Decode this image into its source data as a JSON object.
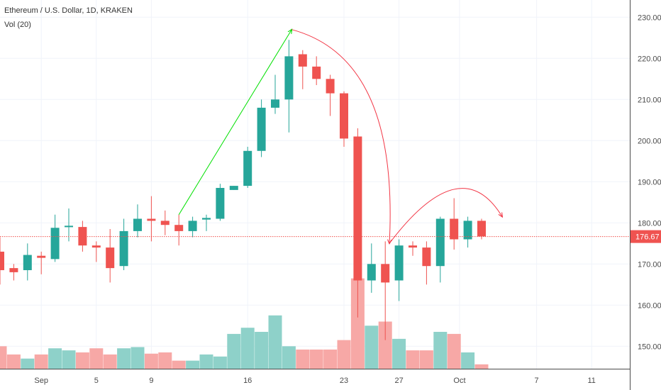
{
  "legend": {
    "title": "Ethereum / U.S. Dollar, 1D, KRAKEN",
    "volume": "Vol (20)"
  },
  "colors": {
    "up": "#26a69a",
    "down": "#ef5350",
    "up_volume": "#8ed1c9",
    "down_volume": "#f7a8a6",
    "last_price": "#ef5350",
    "grid": "#f0f3fa",
    "up_trend_arrow": "#00e000",
    "down_trend_arrow": "#f23645"
  },
  "chart_data": {
    "type": "candlestick",
    "title": "Ethereum / U.S. Dollar, 1D, KRAKEN",
    "ylim": [
      144,
      232
    ],
    "y_ticks": [
      150,
      160,
      170,
      180,
      190,
      200,
      210,
      220,
      230
    ],
    "x_ticks": [
      "Sep",
      "5",
      "9",
      "16",
      "23",
      "27",
      "Oct",
      "7",
      "11"
    ],
    "last_price": 176.67,
    "last_price_label": "176.67",
    "grid": true,
    "candles": [
      {
        "open": 173.0,
        "high": 176.5,
        "low": 165.0,
        "close": 168.5
      },
      {
        "open": 169.0,
        "high": 170.0,
        "low": 166.0,
        "close": 168.0
      },
      {
        "open": 168.5,
        "high": 175.0,
        "low": 166.0,
        "close": 172.2
      },
      {
        "open": 172.0,
        "high": 173.0,
        "low": 167.5,
        "close": 171.5
      },
      {
        "open": 171.2,
        "high": 182.0,
        "low": 170.5,
        "close": 178.8
      },
      {
        "open": 179.0,
        "high": 183.5,
        "low": 175.5,
        "close": 179.3
      },
      {
        "open": 179.0,
        "high": 180.5,
        "low": 173.0,
        "close": 174.5
      },
      {
        "open": 174.5,
        "high": 175.5,
        "low": 170.5,
        "close": 174.0
      },
      {
        "open": 174.0,
        "high": 178.5,
        "low": 165.5,
        "close": 169.0
      },
      {
        "open": 169.5,
        "high": 181.0,
        "low": 168.5,
        "close": 178.0
      },
      {
        "open": 178.0,
        "high": 184.5,
        "low": 176.5,
        "close": 181.0
      },
      {
        "open": 181.0,
        "high": 186.5,
        "low": 175.5,
        "close": 180.5
      },
      {
        "open": 180.5,
        "high": 183.0,
        "low": 177.0,
        "close": 179.5
      },
      {
        "open": 179.5,
        "high": 182.0,
        "low": 174.5,
        "close": 178.0
      },
      {
        "open": 178.0,
        "high": 181.5,
        "low": 176.5,
        "close": 180.5
      },
      {
        "open": 180.8,
        "high": 182.0,
        "low": 178.0,
        "close": 181.2
      },
      {
        "open": 181.0,
        "high": 189.5,
        "low": 180.5,
        "close": 188.5
      },
      {
        "open": 188.0,
        "high": 189.0,
        "low": 188.0,
        "close": 189.0
      },
      {
        "open": 189.0,
        "high": 198.5,
        "low": 188.5,
        "close": 197.5
      },
      {
        "open": 197.5,
        "high": 210.0,
        "low": 196.0,
        "close": 208.0
      },
      {
        "open": 208.0,
        "high": 216.0,
        "low": 206.5,
        "close": 210.0
      },
      {
        "open": 210.0,
        "high": 224.5,
        "low": 202.0,
        "close": 220.5
      },
      {
        "open": 221.0,
        "high": 222.0,
        "low": 212.5,
        "close": 218.0
      },
      {
        "open": 218.0,
        "high": 220.5,
        "low": 213.5,
        "close": 215.0
      },
      {
        "open": 215.0,
        "high": 216.0,
        "low": 206.0,
        "close": 211.5
      },
      {
        "open": 211.5,
        "high": 212.0,
        "low": 198.5,
        "close": 200.5
      },
      {
        "open": 201.0,
        "high": 203.0,
        "low": 157.0,
        "close": 166.0
      },
      {
        "open": 166.0,
        "high": 175.0,
        "low": 163.0,
        "close": 170.0
      },
      {
        "open": 170.0,
        "high": 175.5,
        "low": 151.5,
        "close": 165.5
      },
      {
        "open": 166.0,
        "high": 176.0,
        "low": 161.0,
        "close": 174.5
      },
      {
        "open": 174.5,
        "high": 175.5,
        "low": 172.0,
        "close": 174.0
      },
      {
        "open": 174.0,
        "high": 175.5,
        "low": 165.0,
        "close": 169.5
      },
      {
        "open": 169.5,
        "high": 181.5,
        "low": 165.5,
        "close": 181.0
      },
      {
        "open": 181.0,
        "high": 186.0,
        "low": 173.5,
        "close": 176.0
      },
      {
        "open": 176.0,
        "high": 181.5,
        "low": 174.0,
        "close": 180.5
      },
      {
        "open": 180.5,
        "high": 181.0,
        "low": 176.0,
        "close": 176.7
      }
    ],
    "volumes": [
      150,
      148,
      147,
      148,
      149.5,
      149,
      148.5,
      149.5,
      148,
      149.5,
      149.8,
      148.2,
      148.5,
      146.5,
      146.5,
      148,
      147.5,
      153,
      154.5,
      153.5,
      157.5,
      150,
      149.2,
      149.2,
      149.2,
      151.5,
      166.5,
      155,
      156,
      151.8,
      149,
      149,
      153.5,
      153,
      148.5,
      145.6
    ]
  }
}
